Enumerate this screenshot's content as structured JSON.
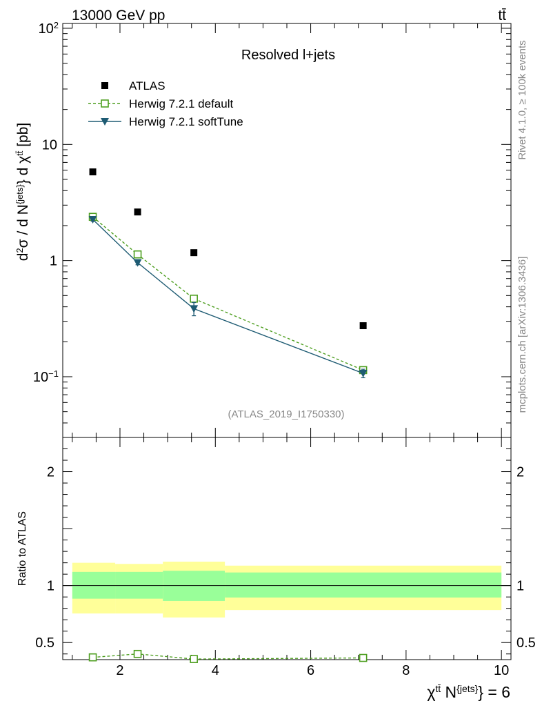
{
  "header": {
    "energy_label": "13000 GeV pp",
    "process_label": "tt̄"
  },
  "side_labels": {
    "rivet": "Rivet 4.1.0, ≥ 100k events",
    "mcplots": "mcplots.cern.ch [arXiv:1306.3436]"
  },
  "chart_data": [
    {
      "type": "scatter",
      "panel": "main",
      "title": "Resolved l+jets",
      "analysis_id": "(ATLAS_2019_I1750330)",
      "ylabel": "d²σ / d N^{jets} d χ^{tt̄} [pb]",
      "yscale": "log",
      "ylim": [
        0.03,
        110
      ],
      "xlim": [
        0.8,
        10.2
      ],
      "y_ticks": [
        {
          "value": 0.1,
          "base": "10",
          "exp": "−1"
        },
        {
          "value": 1,
          "label": "1"
        },
        {
          "value": 10,
          "label": "10"
        },
        {
          "value": 100,
          "base": "10",
          "exp": "2"
        }
      ],
      "legend": {
        "position": "top-left"
      },
      "series": [
        {
          "name": "ATLAS",
          "color": "#000000",
          "marker": "square-filled",
          "line": "none",
          "x": [
            1.43,
            2.37,
            3.55,
            7.1
          ],
          "y": [
            5.8,
            2.62,
            1.17,
            0.275
          ],
          "yerr": [
            0,
            0,
            0,
            0
          ]
        },
        {
          "name": "Herwig 7.2.1 default",
          "color": "#4d9e1f",
          "marker": "square-open",
          "line": "dashed",
          "x": [
            1.43,
            2.37,
            3.55,
            7.1
          ],
          "y": [
            2.38,
            1.13,
            0.47,
            0.114
          ],
          "yerr": [
            0.07,
            0.04,
            0.03,
            0.006
          ]
        },
        {
          "name": "Herwig 7.2.1 softTune",
          "color": "#1e5b73",
          "marker": "triangle-down",
          "line": "solid",
          "x": [
            1.43,
            2.37,
            3.55,
            7.1
          ],
          "y": [
            2.26,
            0.96,
            0.385,
            0.107
          ],
          "yerr": [
            0.08,
            0.04,
            0.05,
            0.009
          ]
        }
      ]
    },
    {
      "type": "scatter",
      "panel": "ratio",
      "ylabel": "Ratio to ATLAS",
      "xlabel_prefix": "χ",
      "xlabel_sup1": "tt̄",
      "xlabel_mid": " N",
      "xlabel_sup2": "{jets}",
      "xlabel_suffix": "} = 6",
      "ylim": [
        0.35,
        2.3
      ],
      "xlim": [
        0.8,
        10.2
      ],
      "x_ticks": [
        2,
        4,
        6,
        8,
        10
      ],
      "y_ticks": [
        {
          "value": 0.5,
          "label": "0.5"
        },
        {
          "value": 1,
          "label": "1"
        },
        {
          "value": 2,
          "label": "2"
        }
      ],
      "bands": [
        {
          "x0": 1.0,
          "x1": 1.9,
          "inner": [
            0.885,
            1.12
          ],
          "outer": [
            0.755,
            1.2
          ]
        },
        {
          "x0": 1.9,
          "x1": 2.9,
          "inner": [
            0.885,
            1.12
          ],
          "outer": [
            0.755,
            1.19
          ]
        },
        {
          "x0": 2.9,
          "x1": 4.2,
          "inner": [
            0.865,
            1.13
          ],
          "outer": [
            0.72,
            1.21
          ]
        },
        {
          "x0": 4.2,
          "x1": 10.0,
          "inner": [
            0.895,
            1.115
          ],
          "outer": [
            0.785,
            1.175
          ]
        }
      ],
      "series": [
        {
          "name": "Herwig 7.2.1 default",
          "color": "#4d9e1f",
          "marker": "square-open",
          "line": "dashed",
          "x": [
            1.43,
            2.37,
            3.55,
            7.1
          ],
          "y": [
            0.37,
            0.4,
            0.355,
            0.365
          ],
          "yerr": [
            0.015,
            0.02,
            0.02,
            0.025
          ]
        }
      ]
    }
  ]
}
